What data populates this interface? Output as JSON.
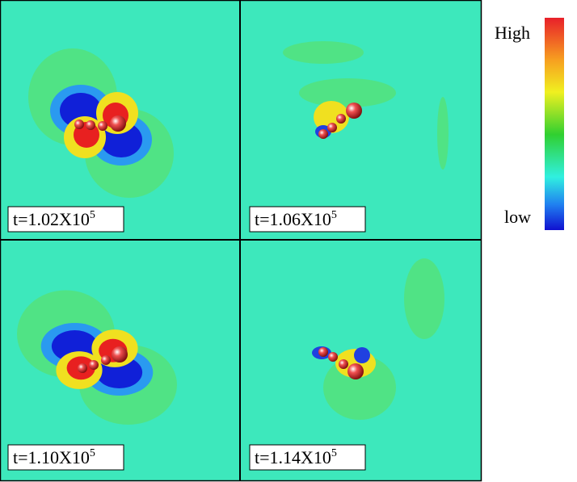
{
  "panels": [
    {
      "label": {
        "text": "t=1.02X10",
        "superscript": "5"
      }
    },
    {
      "label": {
        "text": "t=1.06X10",
        "superscript": "5"
      }
    },
    {
      "label": {
        "text": "t=1.10X10",
        "superscript": "5"
      }
    },
    {
      "label": {
        "text": "t=1.14X10",
        "superscript": "5"
      }
    }
  ],
  "colorbar": {
    "high_label": "High",
    "low_label": "low"
  }
}
